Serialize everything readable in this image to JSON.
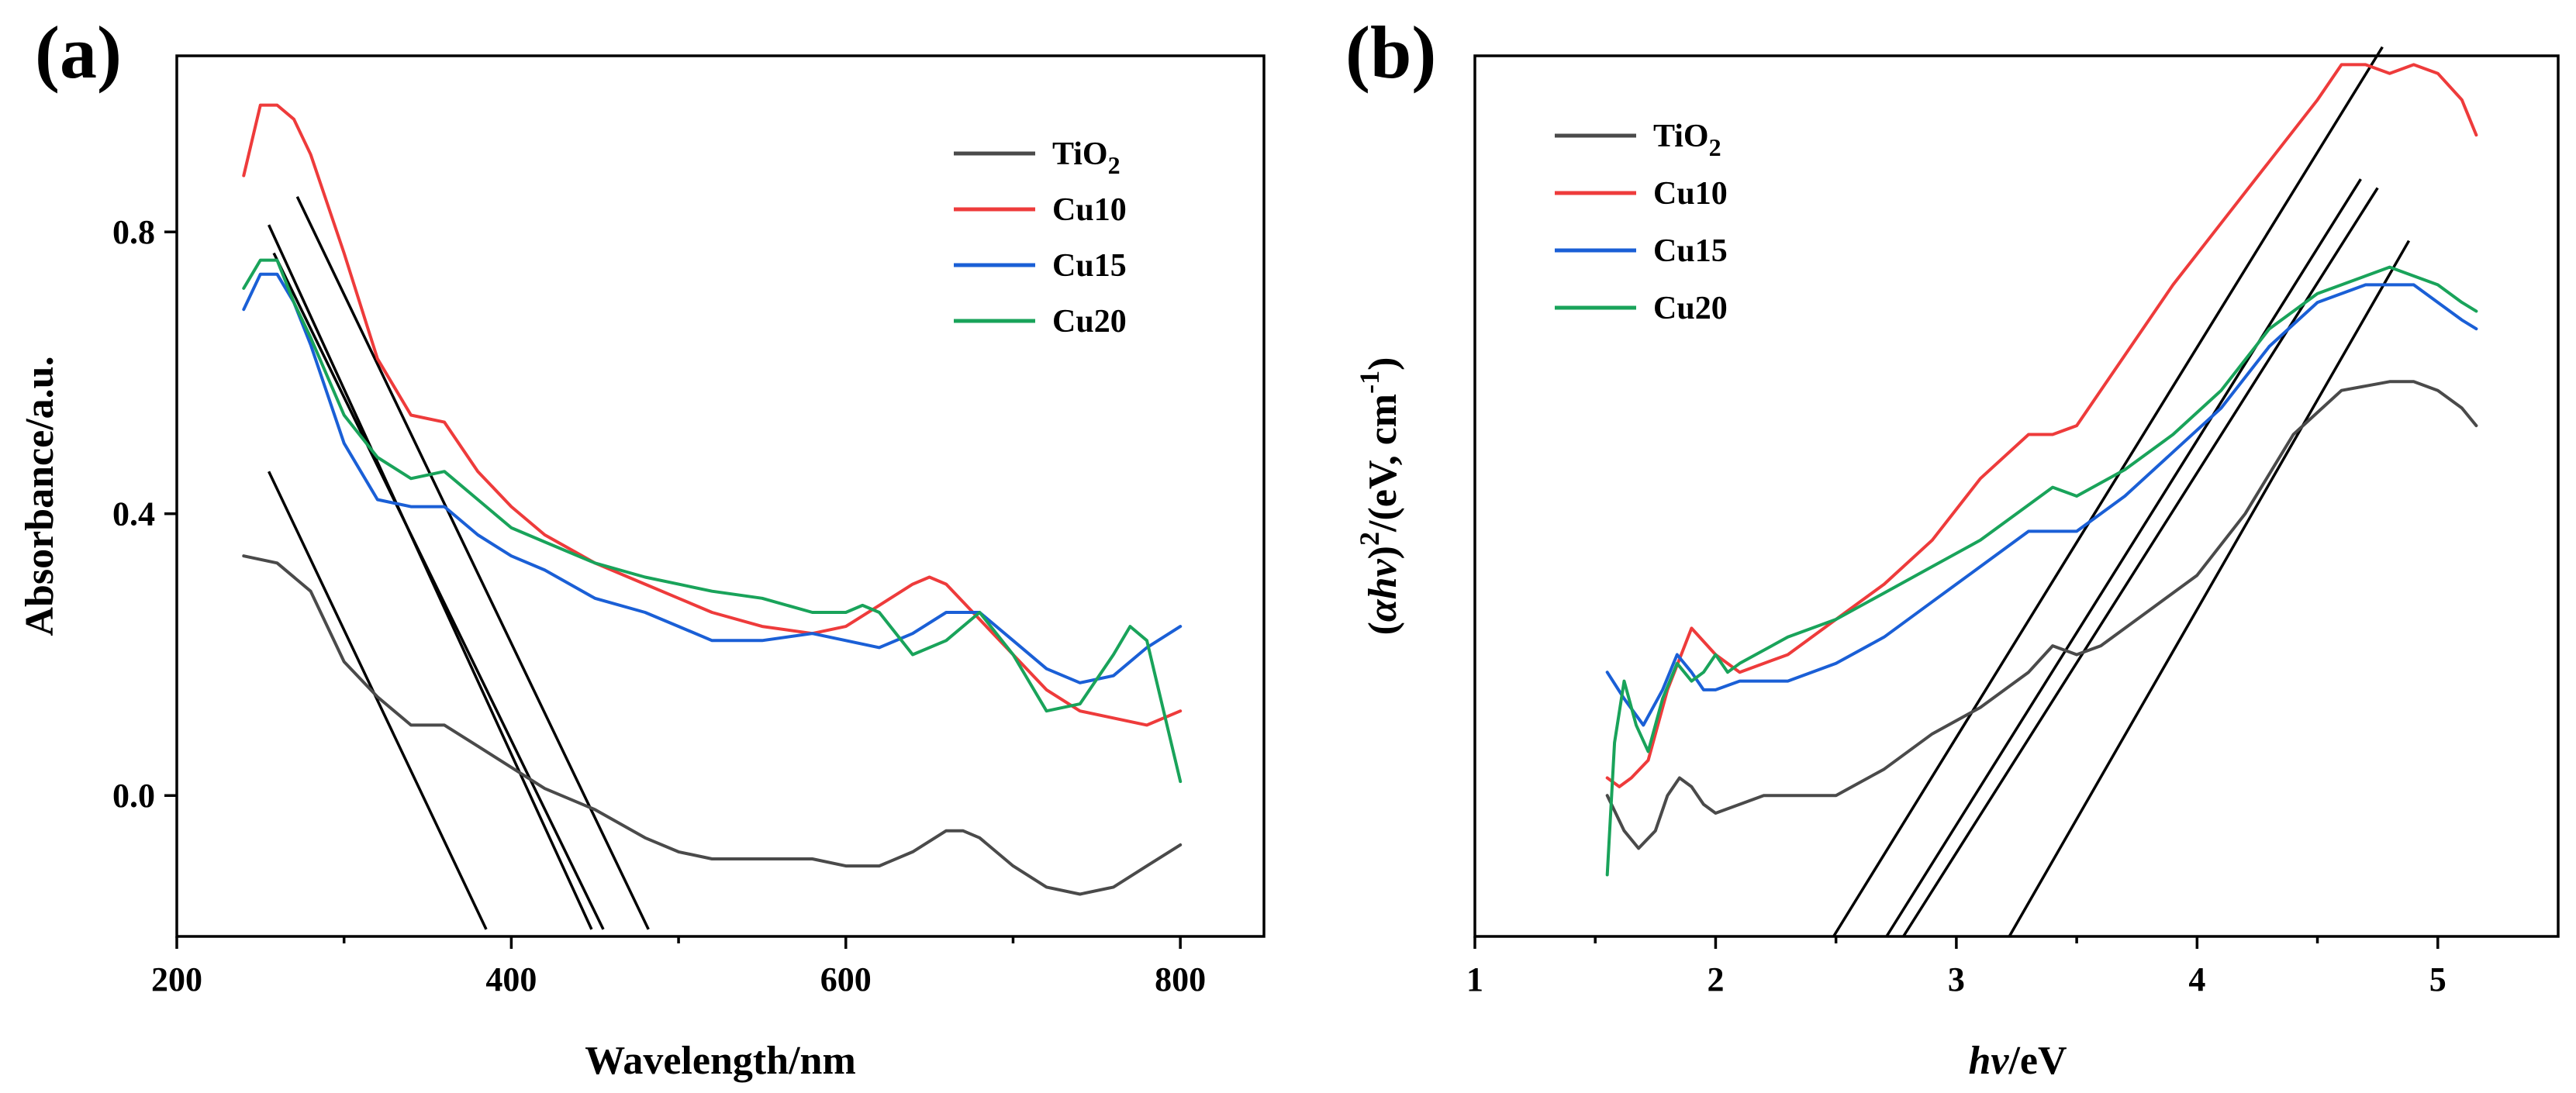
{
  "colors": {
    "TiO2": "#4a4a4a",
    "Cu10": "#ee3b3b",
    "Cu15": "#1a5fd6",
    "Cu20": "#19a35a",
    "fit": "#000000"
  },
  "chart_data": [
    {
      "panel": "(a)",
      "type": "line",
      "xlabel": "Wavelength/nm",
      "ylabel": "Absorbance/a.u.",
      "xlim": [
        200,
        850
      ],
      "ylim": [
        -0.2,
        1.05
      ],
      "xticks": [
        200,
        400,
        600,
        800
      ],
      "xtick_labels": [
        "200",
        "400",
        "600",
        "800"
      ],
      "yticks": [
        0.0,
        0.4,
        0.8
      ],
      "ytick_labels": [
        "0.0",
        "0.4",
        "0.8"
      ],
      "legend": {
        "position": "top-right",
        "entries": [
          {
            "key": "TiO2",
            "label_main": "TiO",
            "label_sub": "2"
          },
          {
            "key": "Cu10",
            "label_main": "Cu10",
            "label_sub": ""
          },
          {
            "key": "Cu15",
            "label_main": "Cu15",
            "label_sub": ""
          },
          {
            "key": "Cu20",
            "label_main": "Cu20",
            "label_sub": ""
          }
        ]
      },
      "series": [
        {
          "name": "TiO2",
          "x": [
            240,
            260,
            280,
            300,
            320,
            340,
            360,
            380,
            400,
            420,
            450,
            480,
            500,
            520,
            550,
            580,
            600,
            620,
            640,
            660,
            670,
            680,
            700,
            720,
            740,
            760,
            780,
            800
          ],
          "y": [
            0.34,
            0.33,
            0.29,
            0.19,
            0.14,
            0.1,
            0.1,
            0.07,
            0.04,
            0.01,
            -0.02,
            -0.06,
            -0.08,
            -0.09,
            -0.09,
            -0.09,
            -0.1,
            -0.1,
            -0.08,
            -0.05,
            -0.05,
            -0.06,
            -0.1,
            -0.13,
            -0.14,
            -0.13,
            -0.1,
            -0.07
          ]
        },
        {
          "name": "Cu10",
          "x": [
            240,
            250,
            260,
            270,
            280,
            300,
            320,
            340,
            360,
            380,
            400,
            420,
            450,
            480,
            500,
            520,
            550,
            580,
            600,
            620,
            640,
            650,
            660,
            680,
            700,
            720,
            740,
            760,
            780,
            800
          ],
          "y": [
            0.88,
            0.98,
            0.98,
            0.96,
            0.91,
            0.77,
            0.62,
            0.54,
            0.53,
            0.46,
            0.41,
            0.37,
            0.33,
            0.3,
            0.28,
            0.26,
            0.24,
            0.23,
            0.24,
            0.27,
            0.3,
            0.31,
            0.3,
            0.25,
            0.2,
            0.15,
            0.12,
            0.11,
            0.1,
            0.12
          ]
        },
        {
          "name": "Cu15",
          "x": [
            240,
            250,
            260,
            270,
            280,
            300,
            320,
            340,
            360,
            380,
            400,
            420,
            450,
            480,
            500,
            520,
            550,
            580,
            600,
            620,
            640,
            660,
            680,
            700,
            720,
            740,
            760,
            780,
            800
          ],
          "y": [
            0.69,
            0.74,
            0.74,
            0.7,
            0.64,
            0.5,
            0.42,
            0.41,
            0.41,
            0.37,
            0.34,
            0.32,
            0.28,
            0.26,
            0.24,
            0.22,
            0.22,
            0.23,
            0.22,
            0.21,
            0.23,
            0.26,
            0.26,
            0.22,
            0.18,
            0.16,
            0.17,
            0.21,
            0.24
          ]
        },
        {
          "name": "Cu20",
          "x": [
            240,
            250,
            260,
            270,
            280,
            300,
            320,
            340,
            360,
            380,
            400,
            420,
            450,
            480,
            500,
            520,
            550,
            580,
            600,
            610,
            620,
            640,
            660,
            680,
            700,
            720,
            740,
            760,
            770,
            780,
            790,
            800
          ],
          "y": [
            0.72,
            0.76,
            0.76,
            0.7,
            0.65,
            0.54,
            0.48,
            0.45,
            0.46,
            0.42,
            0.38,
            0.36,
            0.33,
            0.31,
            0.3,
            0.29,
            0.28,
            0.26,
            0.26,
            0.27,
            0.26,
            0.2,
            0.22,
            0.26,
            0.2,
            0.12,
            0.13,
            0.2,
            0.24,
            0.22,
            0.12,
            0.02
          ]
        }
      ],
      "tangent_lines": [
        {
          "x1": 255,
          "y1": 0.46,
          "x2": 385,
          "y2": -0.19
        },
        {
          "x1": 255,
          "y1": 0.81,
          "x2": 448,
          "y2": -0.19
        },
        {
          "x1": 258,
          "y1": 0.77,
          "x2": 455,
          "y2": -0.19
        },
        {
          "x1": 272,
          "y1": 0.85,
          "x2": 482,
          "y2": -0.19
        }
      ]
    },
    {
      "panel": "(b)",
      "type": "line",
      "xlabel": "hv/eV",
      "ylabel": "(αhv)²/(eV, cm⁻¹)",
      "xlim": [
        1,
        5.5
      ],
      "ylim": [
        0,
        1
      ],
      "xticks": [
        1,
        2,
        3,
        4,
        5
      ],
      "xtick_labels": [
        "1",
        "2",
        "3",
        "4",
        "5"
      ],
      "yticks": [],
      "ytick_labels": [],
      "legend": {
        "position": "top-left",
        "entries": [
          {
            "key": "TiO2",
            "label_main": "TiO",
            "label_sub": "2"
          },
          {
            "key": "Cu10",
            "label_main": "Cu10",
            "label_sub": ""
          },
          {
            "key": "Cu15",
            "label_main": "Cu15",
            "label_sub": ""
          },
          {
            "key": "Cu20",
            "label_main": "Cu20",
            "label_sub": ""
          }
        ]
      },
      "series": [
        {
          "name": "TiO2",
          "x": [
            1.55,
            1.62,
            1.68,
            1.75,
            1.8,
            1.85,
            1.9,
            1.95,
            2.0,
            2.1,
            2.2,
            2.3,
            2.5,
            2.7,
            2.9,
            3.1,
            3.3,
            3.4,
            3.5,
            3.6,
            3.8,
            4.0,
            4.2,
            4.4,
            4.6,
            4.8,
            4.9,
            5.0,
            5.1,
            5.16
          ],
          "y": [
            0.16,
            0.12,
            0.1,
            0.12,
            0.16,
            0.18,
            0.17,
            0.15,
            0.14,
            0.15,
            0.16,
            0.16,
            0.16,
            0.19,
            0.23,
            0.26,
            0.3,
            0.33,
            0.32,
            0.33,
            0.37,
            0.41,
            0.48,
            0.57,
            0.62,
            0.63,
            0.63,
            0.62,
            0.6,
            0.58
          ]
        },
        {
          "name": "Cu10",
          "x": [
            1.55,
            1.6,
            1.65,
            1.72,
            1.8,
            1.9,
            2.0,
            2.1,
            2.3,
            2.5,
            2.7,
            2.9,
            3.1,
            3.3,
            3.4,
            3.5,
            3.7,
            3.9,
            4.1,
            4.3,
            4.5,
            4.6,
            4.7,
            4.8,
            4.9,
            5.0,
            5.1,
            5.16
          ],
          "y": [
            0.18,
            0.17,
            0.18,
            0.2,
            0.28,
            0.35,
            0.32,
            0.3,
            0.32,
            0.36,
            0.4,
            0.45,
            0.52,
            0.57,
            0.57,
            0.58,
            0.66,
            0.74,
            0.81,
            0.88,
            0.95,
            0.99,
            0.99,
            0.98,
            0.99,
            0.98,
            0.95,
            0.91
          ]
        },
        {
          "name": "Cu15",
          "x": [
            1.55,
            1.62,
            1.7,
            1.78,
            1.84,
            1.9,
            1.95,
            2.0,
            2.1,
            2.3,
            2.5,
            2.7,
            2.9,
            3.1,
            3.3,
            3.4,
            3.5,
            3.7,
            3.9,
            4.1,
            4.3,
            4.5,
            4.7,
            4.9,
            5.0,
            5.1,
            5.16
          ],
          "y": [
            0.3,
            0.27,
            0.24,
            0.28,
            0.32,
            0.3,
            0.28,
            0.28,
            0.29,
            0.29,
            0.31,
            0.34,
            0.38,
            0.42,
            0.46,
            0.46,
            0.46,
            0.5,
            0.55,
            0.6,
            0.67,
            0.72,
            0.74,
            0.74,
            0.72,
            0.7,
            0.69
          ]
        },
        {
          "name": "Cu20",
          "x": [
            1.55,
            1.58,
            1.62,
            1.67,
            1.72,
            1.78,
            1.84,
            1.9,
            1.95,
            2.0,
            2.05,
            2.1,
            2.3,
            2.5,
            2.7,
            2.9,
            3.1,
            3.3,
            3.4,
            3.5,
            3.7,
            3.9,
            4.1,
            4.3,
            4.5,
            4.7,
            4.8,
            4.9,
            5.0,
            5.1,
            5.16
          ],
          "y": [
            0.07,
            0.22,
            0.29,
            0.24,
            0.21,
            0.27,
            0.31,
            0.29,
            0.3,
            0.32,
            0.3,
            0.31,
            0.34,
            0.36,
            0.39,
            0.42,
            0.45,
            0.49,
            0.51,
            0.5,
            0.53,
            0.57,
            0.62,
            0.69,
            0.73,
            0.75,
            0.76,
            0.75,
            0.74,
            0.72,
            0.71
          ]
        }
      ],
      "tangent_lines": [
        {
          "x1": 2.49,
          "y1": 0.0,
          "x2": 4.77,
          "y2": 1.01
        },
        {
          "x1": 2.71,
          "y1": 0.0,
          "x2": 4.68,
          "y2": 0.86
        },
        {
          "x1": 2.78,
          "y1": 0.0,
          "x2": 4.75,
          "y2": 0.85
        },
        {
          "x1": 3.22,
          "y1": 0.0,
          "x2": 4.88,
          "y2": 0.79
        }
      ]
    }
  ]
}
